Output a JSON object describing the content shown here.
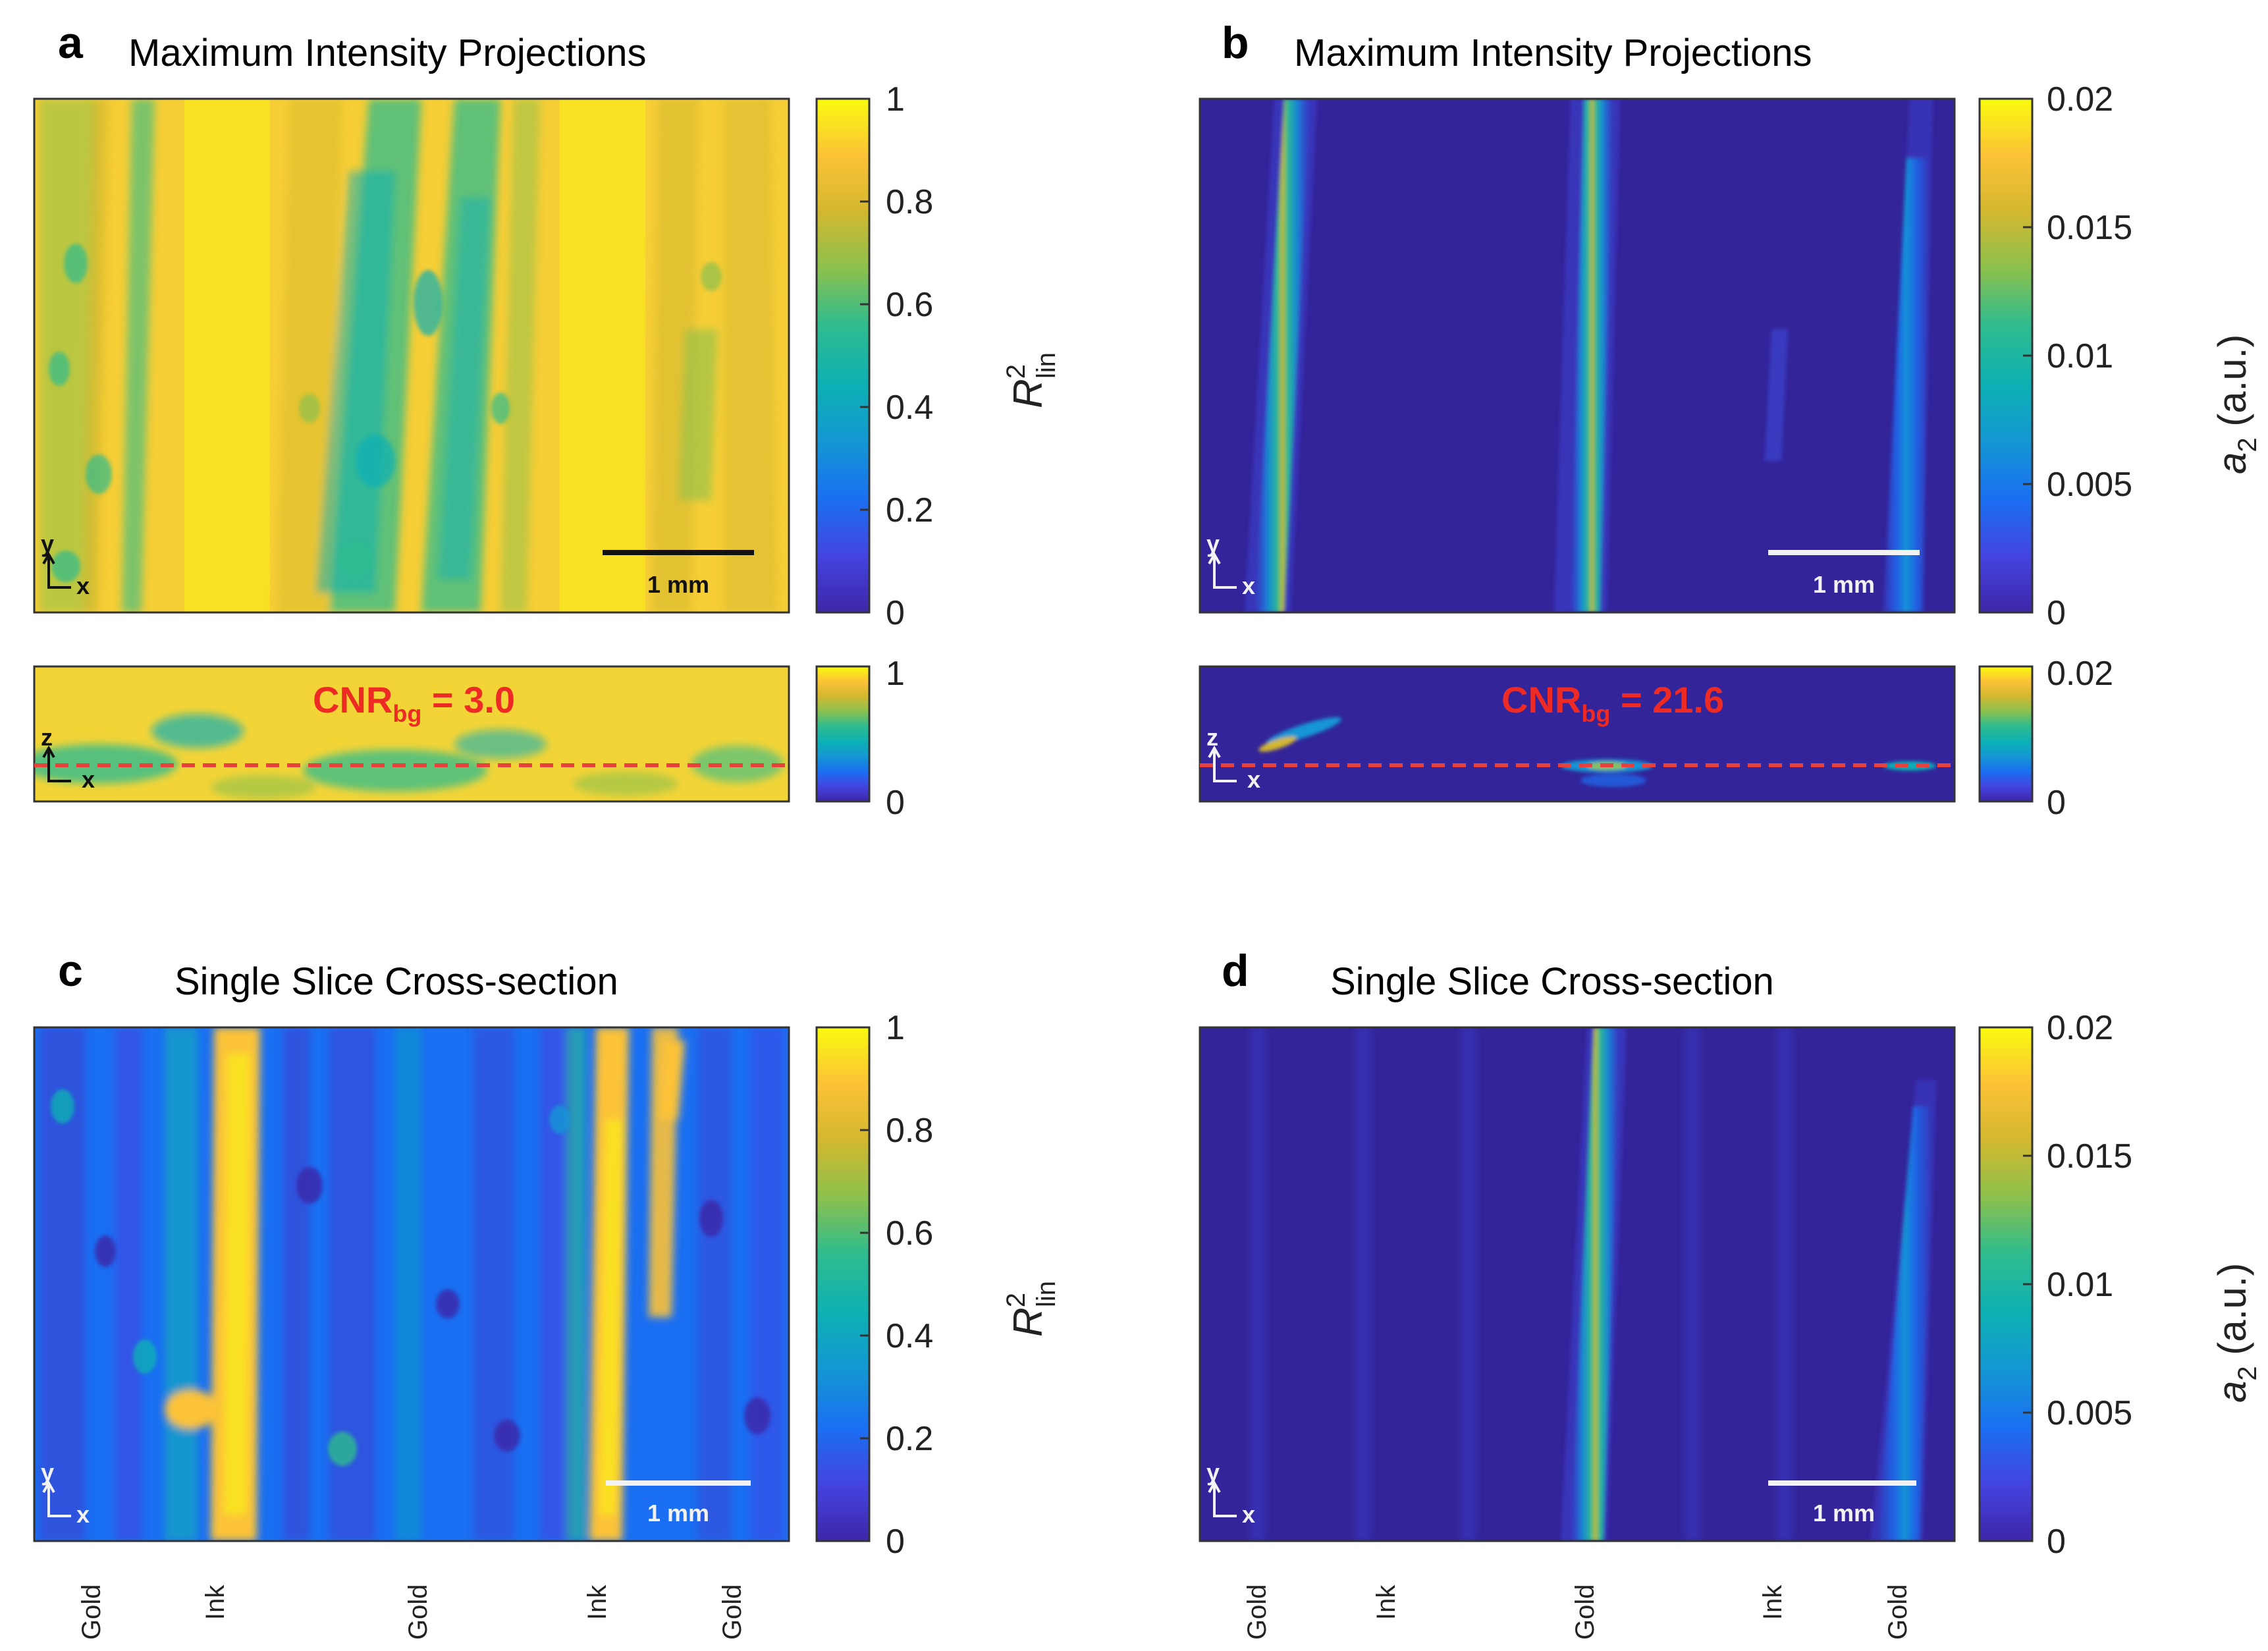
{
  "colors": {
    "parula_stops": [
      "#3e26a8",
      "#4444e0",
      "#1a6ff2",
      "#1496d4",
      "#0db0b5",
      "#2fbc8e",
      "#8cc14d",
      "#d3b82f",
      "#fcc237",
      "#f9fb0e"
    ],
    "background_dark": "#33249a",
    "cnr_text": "#ee2a24",
    "dashed_line": "#e8403a",
    "scalebar_black": "#111111",
    "scalebar_white": "#f2f2f2"
  },
  "panels": {
    "a": {
      "letter": "a",
      "title": "Maximum Intensity Projections",
      "colorbar_ticks": [
        "1",
        "0.8",
        "0.6",
        "0.4",
        "0.2",
        "0"
      ],
      "colorbar_label": "R",
      "colorbar_label_sup": "2",
      "colorbar_label_sub": "lin",
      "scale_bar": "1 mm",
      "axis_main": {
        "vertical": "y",
        "horizontal": "x"
      },
      "xz": {
        "cnr_label": "CNR",
        "cnr_sub": "bg",
        "cnr_value": " = 3.0",
        "axis": {
          "vertical": "z",
          "horizontal": "x"
        },
        "colorbar_ticks": [
          "1",
          "0"
        ]
      }
    },
    "b": {
      "letter": "b",
      "title": "Maximum Intensity Projections",
      "colorbar_ticks": [
        "0.02",
        "0.015",
        "0.01",
        "0.005",
        "0"
      ],
      "colorbar_label": "a",
      "colorbar_label_sub": "2",
      "colorbar_unit": " (a.u.)",
      "scale_bar": "1 mm",
      "axis_main": {
        "vertical": "y",
        "horizontal": "x"
      },
      "xz": {
        "cnr_label": "CNR",
        "cnr_sub": "bg",
        "cnr_value": " = 21.6",
        "axis": {
          "vertical": "z",
          "horizontal": "x"
        },
        "colorbar_ticks": [
          "0.02",
          "0"
        ]
      }
    },
    "c": {
      "letter": "c",
      "title": "Single Slice Cross-section",
      "colorbar_ticks": [
        "1",
        "0.8",
        "0.6",
        "0.4",
        "0.2",
        "0"
      ],
      "colorbar_label": "R",
      "colorbar_label_sup": "2",
      "colorbar_label_sub": "lin",
      "scale_bar": "1 mm",
      "axis_main": {
        "vertical": "y",
        "horizontal": "x"
      },
      "bottom_labels": [
        "Gold",
        "Ink",
        "Gold",
        "Ink",
        "Gold"
      ]
    },
    "d": {
      "letter": "d",
      "title": "Single Slice Cross-section",
      "colorbar_ticks": [
        "0.02",
        "0.015",
        "0.01",
        "0.005",
        "0"
      ],
      "colorbar_label": "a",
      "colorbar_label_sub": "2",
      "colorbar_unit": " (a.u.)",
      "scale_bar": "1 mm",
      "axis_main": {
        "vertical": "y",
        "horizontal": "x"
      },
      "bottom_labels": [
        "Gold",
        "Ink",
        "Gold",
        "Ink",
        "Gold"
      ]
    }
  }
}
